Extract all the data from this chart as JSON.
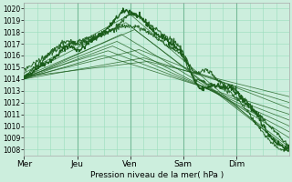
{
  "bg_color": "#cceedd",
  "grid_color": "#99ddbb",
  "line_color": "#1a5c1a",
  "ylabel_ticks": [
    1008,
    1009,
    1010,
    1011,
    1012,
    1013,
    1014,
    1015,
    1016,
    1017,
    1018,
    1019,
    1020
  ],
  "ylim": [
    1007.5,
    1020.5
  ],
  "xlabel": "Pression niveau de la mer( hPa )",
  "day_labels": [
    "Mer",
    "Jeu",
    "Ven",
    "Sam",
    "Dim"
  ],
  "day_positions": [
    0,
    24,
    48,
    72,
    96
  ],
  "total_hours": 120,
  "figwidth": 3.2,
  "figheight": 2.0,
  "dpi": 100
}
